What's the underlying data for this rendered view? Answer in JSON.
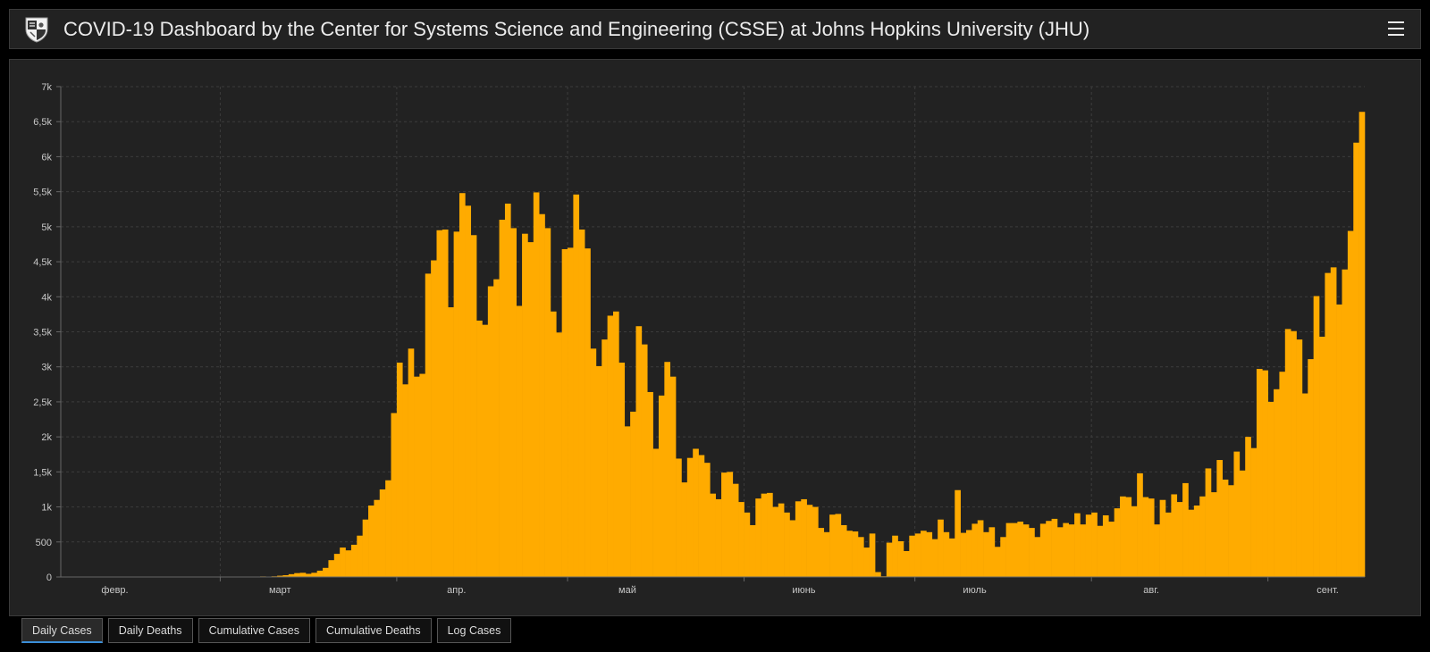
{
  "header": {
    "title": "COVID-19 Dashboard by the Center for Systems Science and Engineering (CSSE) at Johns Hopkins University (JHU)",
    "logo_icon": "jhu-shield-icon",
    "menu_icon": "hamburger-menu-icon"
  },
  "colors": {
    "bar": "#ffab00",
    "background": "#222222",
    "page": "#000000",
    "grid": "#3c3c3c",
    "active_tab_underline": "#3b8fd9"
  },
  "tabs": [
    {
      "label": "Daily Cases",
      "active": true
    },
    {
      "label": "Daily Deaths",
      "active": false
    },
    {
      "label": "Cumulative Cases",
      "active": false
    },
    {
      "label": "Cumulative Deaths",
      "active": false
    },
    {
      "label": "Log Cases",
      "active": false
    }
  ],
  "chart_data": {
    "type": "bar",
    "title": "",
    "xlabel": "",
    "ylabel": "",
    "ylim": [
      0,
      7000
    ],
    "yticks": [
      {
        "value": 0,
        "label": "0"
      },
      {
        "value": 500,
        "label": "500"
      },
      {
        "value": 1000,
        "label": "1k"
      },
      {
        "value": 1500,
        "label": "1,5k"
      },
      {
        "value": 2000,
        "label": "2k"
      },
      {
        "value": 2500,
        "label": "2,5k"
      },
      {
        "value": 3000,
        "label": "3k"
      },
      {
        "value": 3500,
        "label": "3,5k"
      },
      {
        "value": 4000,
        "label": "4k"
      },
      {
        "value": 4500,
        "label": "4,5k"
      },
      {
        "value": 5000,
        "label": "5k"
      },
      {
        "value": 5500,
        "label": "5,5k"
      },
      {
        "value": 6000,
        "label": "6k"
      },
      {
        "value": 6500,
        "label": "6,5k"
      },
      {
        "value": 7000,
        "label": "7k"
      }
    ],
    "xticks": [
      {
        "label": "февр.",
        "day_index": 9
      },
      {
        "label": "март",
        "day_index": 38
      },
      {
        "label": "апр.",
        "day_index": 69
      },
      {
        "label": "май",
        "day_index": 99
      },
      {
        "label": "июнь",
        "day_index": 130
      },
      {
        "label": "июль",
        "day_index": 160
      },
      {
        "label": "авг.",
        "day_index": 191
      },
      {
        "label": "сент.",
        "day_index": 222
      }
    ],
    "grid": true,
    "x_start_date": "2020-01-22",
    "values": [
      0,
      0,
      0,
      0,
      0,
      0,
      0,
      0,
      0,
      0,
      0,
      0,
      0,
      0,
      0,
      0,
      0,
      0,
      0,
      0,
      0,
      0,
      0,
      0,
      0,
      0,
      0,
      0,
      0,
      0,
      0,
      0,
      0,
      0,
      5,
      8,
      5,
      10,
      18,
      25,
      40,
      55,
      60,
      45,
      60,
      90,
      130,
      240,
      330,
      420,
      380,
      460,
      590,
      820,
      1020,
      1100,
      1250,
      1380,
      2340,
      3060,
      2750,
      3260,
      2860,
      2900,
      4330,
      4520,
      4950,
      4960,
      3850,
      4930,
      5480,
      5300,
      4880,
      3660,
      3600,
      4150,
      4250,
      5100,
      5330,
      4980,
      3870,
      4900,
      4780,
      5490,
      5180,
      4980,
      3790,
      3490,
      4680,
      4700,
      5460,
      4960,
      4690,
      3260,
      3010,
      3390,
      3730,
      3790,
      3060,
      2150,
      2360,
      3580,
      3320,
      2640,
      1830,
      2590,
      3070,
      2860,
      1690,
      1350,
      1700,
      1830,
      1740,
      1630,
      1190,
      1110,
      1490,
      1500,
      1330,
      1070,
      920,
      740,
      1120,
      1190,
      1200,
      1000,
      1050,
      920,
      810,
      1080,
      1110,
      1030,
      1000,
      700,
      640,
      890,
      900,
      740,
      660,
      650,
      570,
      420,
      620,
      70,
      10,
      490,
      590,
      510,
      370,
      590,
      620,
      660,
      640,
      540,
      820,
      640,
      550,
      1240,
      630,
      670,
      760,
      810,
      640,
      710,
      430,
      570,
      770,
      770,
      790,
      750,
      700,
      570,
      760,
      800,
      830,
      710,
      770,
      750,
      910,
      750,
      890,
      920,
      730,
      880,
      790,
      980,
      1150,
      1140,
      1010,
      1480,
      1140,
      1120,
      750,
      1100,
      920,
      1180,
      1070,
      1340,
      960,
      1020,
      1150,
      1550,
      1210,
      1670,
      1390,
      1310,
      1790,
      1520,
      2000,
      1840,
      2970,
      2950,
      2500,
      2680,
      2930,
      3540,
      3510,
      3390,
      2620,
      3110,
      4010,
      3430,
      4340,
      4420,
      3890,
      4390,
      4940,
      6200,
      6640
    ]
  }
}
